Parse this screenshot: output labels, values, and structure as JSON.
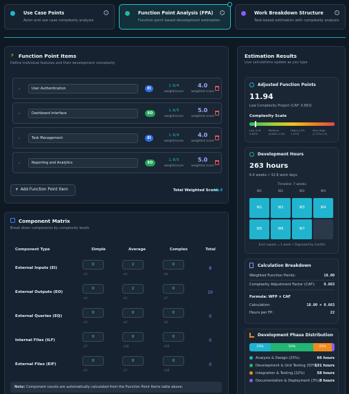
{
  "tabs": [
    {
      "title": "Use Case Points",
      "subtitle": "Actor and use case complexity analysis",
      "color": "#1eb8d0"
    },
    {
      "title": "Function Point Analysis (FPA)",
      "subtitle": "Function point based development estimation",
      "color": "#22b8a0"
    },
    {
      "title": "Work Breakdown Structure",
      "subtitle": "Task-based estimation with complexity analysis",
      "color": "#8b5cf6"
    }
  ],
  "fp_items": {
    "title": "Function Point Items",
    "subtitle": "Define individual features and their development complexity",
    "items": [
      {
        "name": "User Authentication",
        "type": "EI",
        "weight": "1.0/4",
        "weight_label": "weight/score",
        "score": "4.0",
        "score_label": "weighted score"
      },
      {
        "name": "Dashboard Interface",
        "type": "EO",
        "weight": "1.0/5",
        "weight_label": "weight/score",
        "score": "5.0",
        "score_label": "weighted score"
      },
      {
        "name": "Task Management",
        "type": "EI",
        "weight": "1.0/4",
        "weight_label": "weight/score",
        "score": "4.0",
        "score_label": "weighted score"
      },
      {
        "name": "Reporting and Analytics",
        "type": "EO",
        "weight": "1.0/5",
        "weight_label": "weight/score",
        "score": "5.0",
        "score_label": "weighted score"
      }
    ],
    "add_label": "Add Function Point Item",
    "total_label": "Total Weighted Score:",
    "total_value": "18.0"
  },
  "matrix": {
    "title": "Component Matrix",
    "subtitle": "Break down components by complexity levels",
    "headers": [
      "Component Type",
      "Simple",
      "Average",
      "Complex",
      "Total"
    ],
    "rows": [
      {
        "label": "External Inputs (EI)",
        "values": [
          "0",
          "2",
          "0"
        ],
        "mults": [
          "×3",
          "×4",
          "×6"
        ],
        "total": "8"
      },
      {
        "label": "External Outputs (EO)",
        "values": [
          "0",
          "2",
          "0"
        ],
        "mults": [
          "×4",
          "×5",
          "×7"
        ],
        "total": "10"
      },
      {
        "label": "External Queries (EQ)",
        "values": [
          "0",
          "0",
          "0"
        ],
        "mults": [
          "×3",
          "×4",
          "×6"
        ],
        "total": "0"
      },
      {
        "label": "Internal Files (ILF)",
        "values": [
          "0",
          "0",
          "0"
        ],
        "mults": [
          "×7",
          "×10",
          "×15"
        ],
        "total": "0"
      },
      {
        "label": "External Files (EIF)",
        "values": [
          "0",
          "0",
          "0"
        ],
        "mults": [
          "×5",
          "×7",
          "×10"
        ],
        "total": "0"
      }
    ],
    "note_bold": "Note:",
    "note": "Component counts are automatically calculated from the Function Point Items table above."
  },
  "results": {
    "title": "Estimation Results",
    "subtitle": "Live calculations update as you type",
    "afp": {
      "title": "Adjusted Function Points",
      "value": "11.94",
      "desc": "Low Complexity Project (CAF: 0.663)",
      "scale_title": "Complexity Scale",
      "scale_labels": [
        "Low (0.6-0.825)",
        "Medium (0.825-1.05)",
        "High (1.05-1.275)",
        "Very High (1.275-1.5)"
      ],
      "marker": 0.66
    },
    "hours": {
      "title": "Development Hours",
      "value": "263 hours",
      "desc": "6.6 weeks • 32.8 work days",
      "timeline_label": "Timeline: 7 weeks",
      "col_labels": [
        "W1",
        "W2",
        "W3",
        "W4"
      ],
      "weeks": [
        "W1",
        "W2",
        "W3",
        "W4",
        "W5",
        "W6",
        "W7"
      ],
      "caption": "Each square = 1 week • Organized by months"
    },
    "breakdown": {
      "title": "Calculation Breakdown",
      "rows": [
        {
          "label": "Weighted Function Points:",
          "value": "18.00"
        },
        {
          "label": "Complexity Adjustment Factor (CAF):",
          "value": "0.663"
        }
      ],
      "formula_title": "Formula: WFP × CAF",
      "calc_label": "Calculation:",
      "calc_value": "18.00 × 0.663",
      "hpfp_label": "Hours per FP:",
      "hpfp_value": "22"
    },
    "phases": {
      "title": "Development Phase Distribution",
      "segments": [
        {
          "label": "25%",
          "pct": 25,
          "color": "#20b4cf"
        },
        {
          "label": "50%",
          "pct": 50,
          "color": "#22b573"
        },
        {
          "label": "22%",
          "pct": 22,
          "color": "#f08a1e"
        },
        {
          "label": "",
          "pct": 3,
          "color": "#8b5cf6"
        }
      ],
      "legend": [
        {
          "label": "Analysis & Design (25%)",
          "hours": "66 hours",
          "color": "#20b4cf"
        },
        {
          "label": "Development & Unit Testing (50%)",
          "hours": "131 hours",
          "color": "#22b573"
        },
        {
          "label": "Integration & Testing (22%)",
          "hours": "58 hours",
          "color": "#f08a1e"
        },
        {
          "label": "Documentation & Deployment (3%)",
          "hours": "8 hours",
          "color": "#8b5cf6"
        }
      ]
    }
  }
}
